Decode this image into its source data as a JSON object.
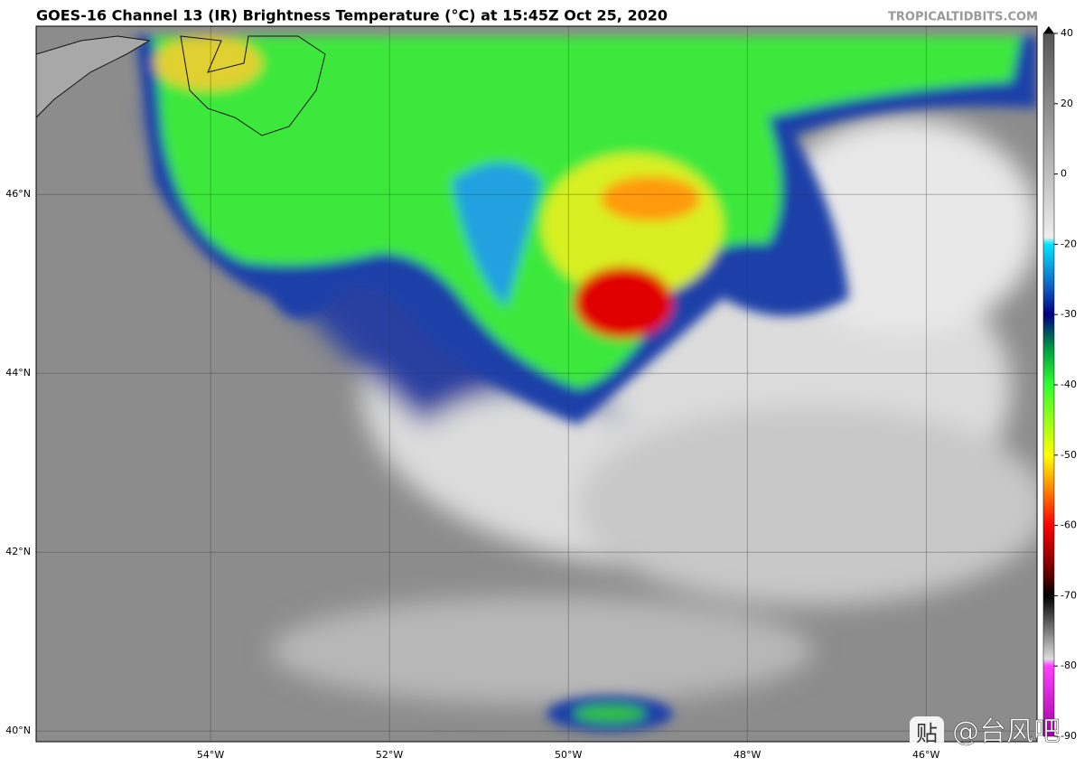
{
  "header": {
    "title": "GOES-16 Channel 13 (IR) Brightness Temperature (°C) at 15:45Z Oct 25, 2020",
    "source": "TROPICALTIDBITS.COM"
  },
  "map": {
    "lon_lines": [
      {
        "value": -54,
        "label": "54°W"
      },
      {
        "value": -52,
        "label": "52°W"
      },
      {
        "value": -50,
        "label": "50°W"
      },
      {
        "value": -48,
        "label": "48°W"
      },
      {
        "value": -46,
        "label": "46°W"
      }
    ],
    "lat_lines": [
      {
        "value": 46,
        "label": "46°N"
      },
      {
        "value": 44,
        "label": "44°N"
      },
      {
        "value": 42,
        "label": "42°N"
      },
      {
        "value": 40,
        "label": "40°N"
      }
    ]
  },
  "colorbar": {
    "ticks": [
      40,
      20,
      0,
      -20,
      -30,
      -40,
      -50,
      -60,
      -70,
      -80,
      -90
    ]
  },
  "watermark": {
    "icon": "贴",
    "text": "@台风吧"
  }
}
